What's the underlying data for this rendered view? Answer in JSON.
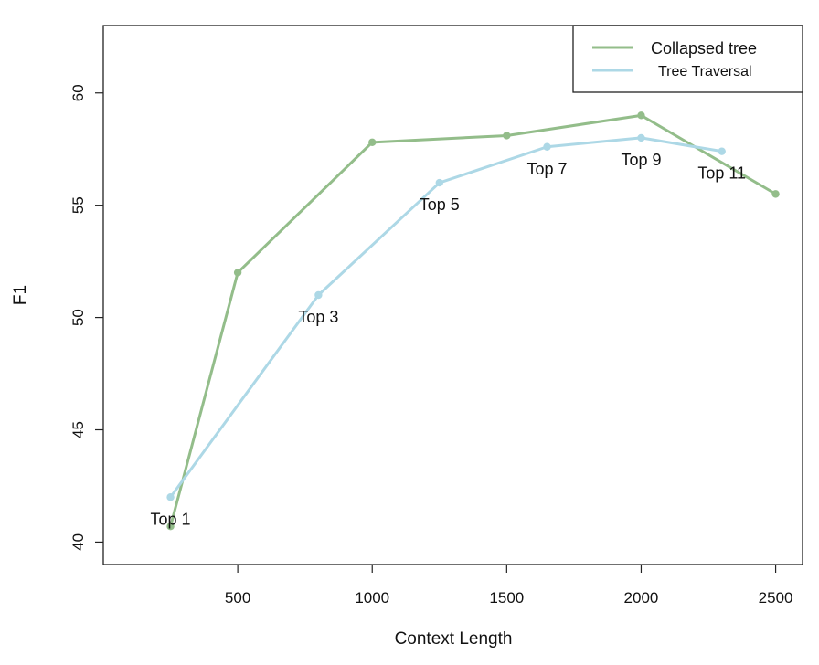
{
  "chart_data": {
    "type": "line",
    "xlabel": "Context Length",
    "ylabel": "F1",
    "xlim": [
      0,
      2600
    ],
    "ylim": [
      39,
      63
    ],
    "x_ticks": [
      500,
      1000,
      1500,
      2000,
      2500
    ],
    "y_ticks": [
      40,
      45,
      50,
      55,
      60
    ],
    "grid": false,
    "legend_position": "top-right",
    "series": [
      {
        "name": "Collapsed tree",
        "color": "#93bd8a",
        "points": [
          {
            "x": 250,
            "y": 40.7
          },
          {
            "x": 500,
            "y": 52.0
          },
          {
            "x": 1000,
            "y": 57.8
          },
          {
            "x": 1500,
            "y": 58.1
          },
          {
            "x": 2000,
            "y": 59.0
          },
          {
            "x": 2500,
            "y": 55.5
          }
        ]
      },
      {
        "name": "Tree Traversal",
        "color": "#add8e6",
        "points": [
          {
            "x": 250,
            "y": 42.0,
            "label": "Top 1"
          },
          {
            "x": 800,
            "y": 51.0,
            "label": "Top 3"
          },
          {
            "x": 1250,
            "y": 56.0,
            "label": "Top 5"
          },
          {
            "x": 1650,
            "y": 57.6,
            "label": "Top 7"
          },
          {
            "x": 2000,
            "y": 58.0,
            "label": "Top 9"
          },
          {
            "x": 2300,
            "y": 57.4,
            "label": "Top 11"
          }
        ]
      }
    ]
  }
}
